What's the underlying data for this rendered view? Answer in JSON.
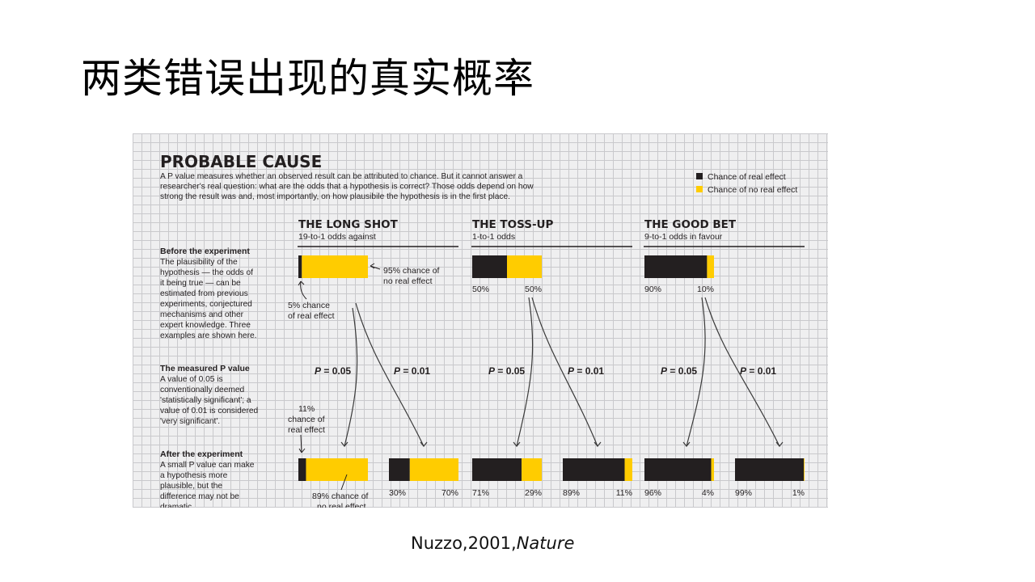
{
  "slide_title": "两类错误出现的真实概率",
  "citation": {
    "text": "Nuzzo,2001,",
    "journal": "Nature"
  },
  "colors": {
    "real_effect": "#231f20",
    "no_real_effect": "#ffcc00",
    "grid_bg": "#efeff0",
    "grid_line": "#c9c9cc"
  },
  "figure": {
    "title": "PROBABLE CAUSE",
    "intro_lines": [
      "A P value measures whether an observed result can be attributed to chance. But it cannot answer a",
      "researcher's real question: what are the odds that a hypothesis is correct? Those odds depend on how",
      "strong the result was and, most importantly, on how plausibile the hypothesis is in the first place."
    ],
    "legend": [
      {
        "label": "Chance of real effect",
        "color": "#231f20"
      },
      {
        "label": "Chance of no real effect",
        "color": "#ffcc00"
      }
    ],
    "sidebar": {
      "before_heading": "Before the experiment",
      "before_lines": [
        "The plausibility of the",
        "hypothesis — the odds of",
        "it being true — can be",
        "estimated from previous",
        "experiments, conjectured",
        "mechanisms and other",
        "expert knowledge. Three",
        "examples are shown here."
      ],
      "measured_heading": "The measured P value",
      "measured_lines": [
        "A value of 0.05 is",
        "conventionally deemed",
        "'statistically significant'; a",
        "value of 0.01 is considered",
        "'very significant'."
      ],
      "after_heading": "After the experiment",
      "after_lines": [
        "A small P value can make",
        "a hypothesis more",
        "plausible, but the",
        "difference may not be",
        "dramatic."
      ]
    },
    "annotations": {
      "prior_no_effect": [
        "95% chance of",
        "no real effect"
      ],
      "prior_real_effect": [
        "5% chance",
        "of real effect"
      ],
      "post_real_effect": [
        "11%",
        "chance of",
        "real effect"
      ],
      "post_no_effect": [
        "89% chance of",
        "no real effect"
      ]
    },
    "p_label_prefix": "P",
    "p_label_values": [
      "= 0.05",
      "= 0.01"
    ]
  },
  "chart_data": {
    "type": "bar",
    "orientation": "horizontal-stacked",
    "series_names": [
      "Chance of real effect",
      "Chance of no real effect"
    ],
    "scenarios": [
      {
        "name": "THE LONG SHOT",
        "odds": "19-to-1 odds against",
        "prior": {
          "real": 5,
          "no_real": 95
        },
        "posterior": [
          {
            "p_value": "0.05",
            "real": 11,
            "no_real": 89
          },
          {
            "p_value": "0.01",
            "real": 30,
            "no_real": 70,
            "real_label": "30%",
            "no_real_label": "70%"
          }
        ]
      },
      {
        "name": "THE TOSS-UP",
        "odds": "1-to-1 odds",
        "prior": {
          "real": 50,
          "no_real": 50,
          "real_label": "50%",
          "no_real_label": "50%"
        },
        "posterior": [
          {
            "p_value": "0.05",
            "real": 71,
            "no_real": 29,
            "real_label": "71%",
            "no_real_label": "29%"
          },
          {
            "p_value": "0.01",
            "real": 89,
            "no_real": 11,
            "real_label": "89%",
            "no_real_label": "11%"
          }
        ]
      },
      {
        "name": "THE GOOD BET",
        "odds": "9-to-1 odds in favour",
        "prior": {
          "real": 90,
          "no_real": 10,
          "real_label": "90%",
          "no_real_label": "10%"
        },
        "posterior": [
          {
            "p_value": "0.05",
            "real": 96,
            "no_real": 4,
            "real_label": "96%",
            "no_real_label": "4%"
          },
          {
            "p_value": "0.01",
            "real": 99,
            "no_real": 1,
            "real_label": "99%",
            "no_real_label": "1%"
          }
        ]
      }
    ]
  }
}
